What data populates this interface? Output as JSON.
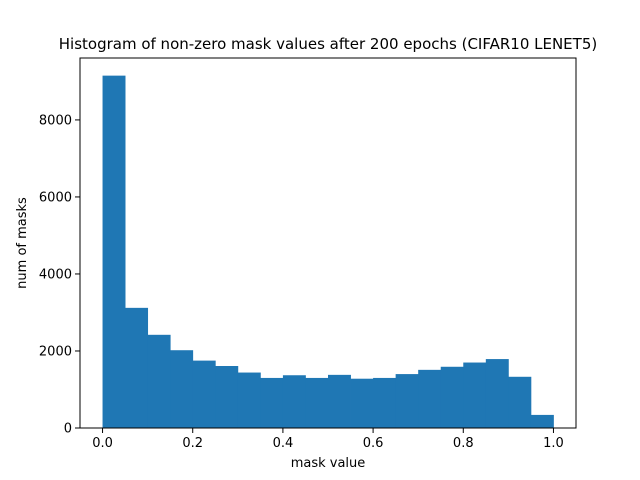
{
  "chart_data": {
    "type": "bar",
    "title": "Histogram of non-zero mask values after 200 epochs (CIFAR10 LENET5)",
    "xlabel": "mask value",
    "ylabel": "num of masks",
    "bar_color": "#1f77b4",
    "bin_edges": [
      0.0,
      0.05,
      0.1,
      0.15,
      0.2,
      0.25,
      0.3,
      0.35,
      0.4,
      0.45,
      0.5,
      0.55,
      0.6,
      0.65,
      0.7,
      0.75,
      0.8,
      0.85,
      0.9,
      0.95,
      1.0
    ],
    "values": [
      9150,
      3120,
      2420,
      2020,
      1750,
      1610,
      1440,
      1300,
      1370,
      1300,
      1380,
      1280,
      1300,
      1400,
      1510,
      1590,
      1700,
      1790,
      1330,
      340
    ],
    "xlim": [
      -0.05,
      1.05
    ],
    "ylim": [
      0,
      9608
    ],
    "xticks": [
      0.0,
      0.2,
      0.4,
      0.6,
      0.8,
      1.0
    ],
    "xtick_labels": [
      "0.0",
      "0.2",
      "0.4",
      "0.6",
      "0.8",
      "1.0"
    ],
    "yticks": [
      0,
      2000,
      4000,
      6000,
      8000
    ],
    "ytick_labels": [
      "0",
      "2000",
      "4000",
      "6000",
      "8000"
    ],
    "grid": false,
    "legend": "none"
  }
}
